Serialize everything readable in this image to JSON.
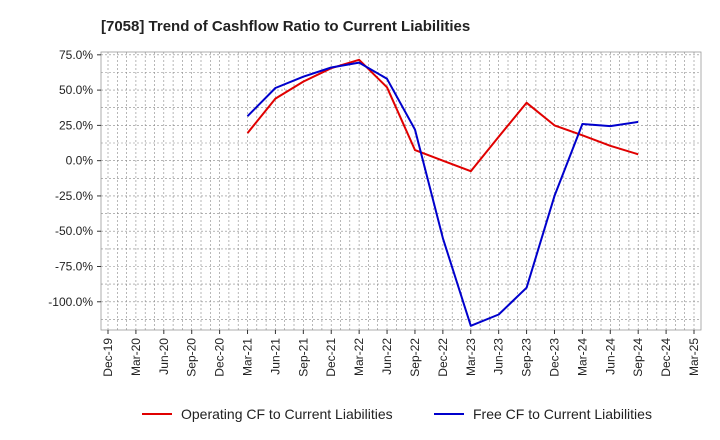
{
  "chart_data": {
    "type": "line",
    "title": "[7058]  Trend of Cashflow Ratio to Current Liabilities",
    "x_categories": [
      "Dec-19",
      "Mar-20",
      "Jun-20",
      "Sep-20",
      "Dec-20",
      "Mar-21",
      "Jun-21",
      "Sep-21",
      "Dec-21",
      "Mar-22",
      "Jun-22",
      "Sep-22",
      "Dec-22",
      "Mar-23",
      "Jun-23",
      "Sep-23",
      "Dec-23",
      "Mar-24",
      "Jun-24",
      "Sep-24",
      "Dec-24",
      "Mar-25"
    ],
    "y_ticks": [
      75.0,
      50.0,
      25.0,
      0.0,
      -25.0,
      -50.0,
      -75.0,
      -100.0
    ],
    "y_tick_labels": [
      "75.0%",
      "50.0%",
      "25.0%",
      "0.0%",
      "-25.0%",
      "-50.0%",
      "-75.0%",
      "-100.0%"
    ],
    "ylim": [
      -120,
      77
    ],
    "grid": true,
    "legend_position": "bottom",
    "series": [
      {
        "name": "Operating CF to Current Liabilities",
        "color": "#e00000",
        "x": [
          "Mar-21",
          "Jun-21",
          "Sep-21",
          "Dec-21",
          "Mar-22",
          "Jun-22",
          "Sep-22",
          "Dec-22",
          "Mar-23",
          "Jun-23",
          "Sep-23",
          "Dec-23",
          "Mar-24",
          "Jun-24",
          "Sep-24"
        ],
        "values": [
          19.5,
          44.0,
          56.0,
          65.5,
          71.5,
          52.0,
          7.5,
          0.0,
          -7.5,
          17.0,
          41.0,
          25.0,
          18.0,
          10.5,
          4.5
        ]
      },
      {
        "name": "Free CF to Current Liabilities",
        "color": "#0000cc",
        "x": [
          "Mar-21",
          "Jun-21",
          "Sep-21",
          "Dec-21",
          "Mar-22",
          "Jun-22",
          "Sep-22",
          "Dec-22",
          "Mar-23",
          "Jun-23",
          "Sep-23",
          "Dec-23",
          "Mar-24",
          "Jun-24",
          "Sep-24"
        ],
        "values": [
          31.5,
          51.5,
          59.5,
          66.0,
          69.5,
          58.0,
          22.0,
          -55.0,
          -117.0,
          -109.0,
          -90.0,
          -25.0,
          26.0,
          24.5,
          27.5
        ]
      }
    ]
  }
}
